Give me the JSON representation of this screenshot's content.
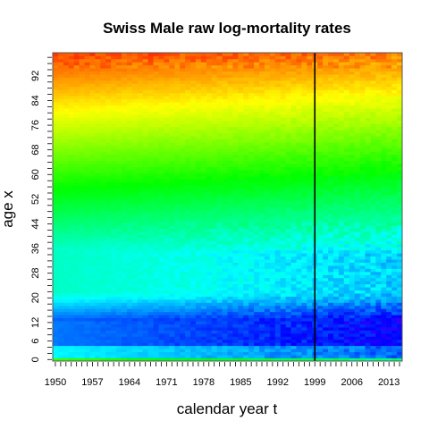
{
  "chart_data": {
    "type": "heatmap",
    "title": "Swiss Male raw log-mortality rates",
    "xlabel": "calendar year t",
    "ylabel": "age x",
    "x_range": [
      1950,
      2016
    ],
    "y_range": [
      0,
      99
    ],
    "x_ticks": [
      1950,
      1957,
      1964,
      1971,
      1978,
      1985,
      1992,
      1999,
      2006,
      2013
    ],
    "y_ticks": [
      0,
      6,
      12,
      20,
      28,
      36,
      44,
      52,
      60,
      68,
      76,
      84,
      92
    ],
    "vertical_line_x": 1999,
    "colormap": "rainbow (blue = low, red = high)",
    "color_range": [
      -10,
      0
    ],
    "frame": true,
    "grid": false
  }
}
